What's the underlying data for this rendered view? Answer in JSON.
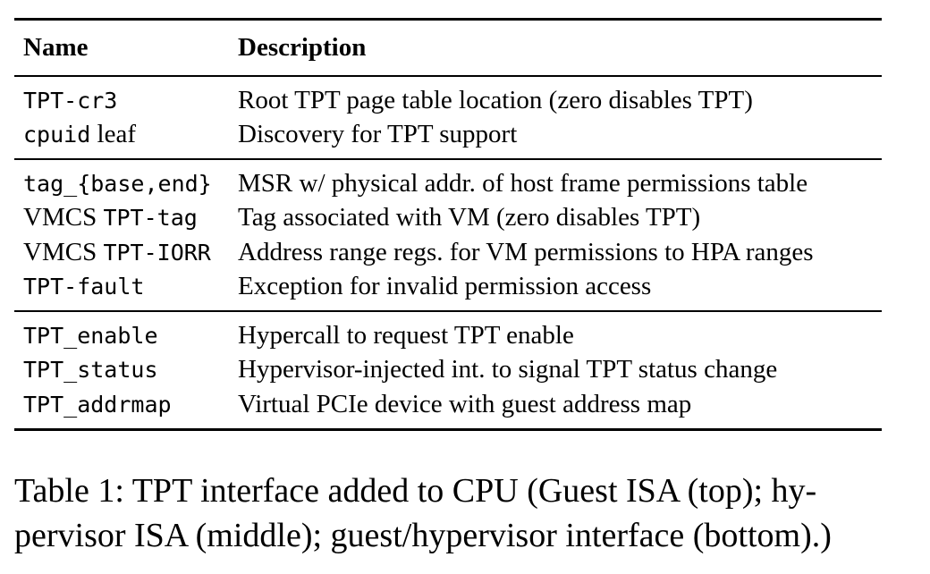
{
  "table": {
    "headers": {
      "name": "Name",
      "description": "Description"
    },
    "groups": [
      {
        "rows": [
          {
            "name_parts": [
              {
                "text": "TPT-cr3",
                "mono": true
              }
            ],
            "description": "Root TPT page table location (zero disables TPT)"
          },
          {
            "name_parts": [
              {
                "text": "cpuid",
                "mono": true
              },
              {
                "text": " leaf",
                "mono": false
              }
            ],
            "description": "Discovery for TPT support"
          }
        ]
      },
      {
        "rows": [
          {
            "name_parts": [
              {
                "text": "tag_{base,end}",
                "mono": true
              }
            ],
            "description": "MSR w/ physical addr. of host frame permissions table"
          },
          {
            "name_parts": [
              {
                "text": "VMCS ",
                "mono": false
              },
              {
                "text": "TPT-tag",
                "mono": true
              }
            ],
            "description": "Tag associated with VM (zero disables TPT)"
          },
          {
            "name_parts": [
              {
                "text": "VMCS ",
                "mono": false
              },
              {
                "text": "TPT-IORR",
                "mono": true
              }
            ],
            "description": "Address range regs. for VM permissions to HPA ranges"
          },
          {
            "name_parts": [
              {
                "text": "TPT-fault",
                "mono": true
              }
            ],
            "description": "Exception for invalid permission access"
          }
        ]
      },
      {
        "rows": [
          {
            "name_parts": [
              {
                "text": "TPT_enable",
                "mono": true
              }
            ],
            "description": "Hypercall to request TPT enable"
          },
          {
            "name_parts": [
              {
                "text": "TPT_status",
                "mono": true
              }
            ],
            "description": "Hypervisor-injected int. to signal TPT status change"
          },
          {
            "name_parts": [
              {
                "text": "TPT_addrmap",
                "mono": true
              }
            ],
            "description": "Virtual PCIe device with guest address map"
          }
        ]
      }
    ]
  },
  "caption": "Table 1: TPT interface added to CPU (Guest ISA (top); hy-pervisor ISA (middle); guest/hypervisor interface (bottom).)",
  "caption_lines": [
    "Table 1: TPT interface added to CPU (Guest ISA (top); hy-",
    "pervisor ISA (middle); guest/hypervisor interface (bottom).)"
  ]
}
